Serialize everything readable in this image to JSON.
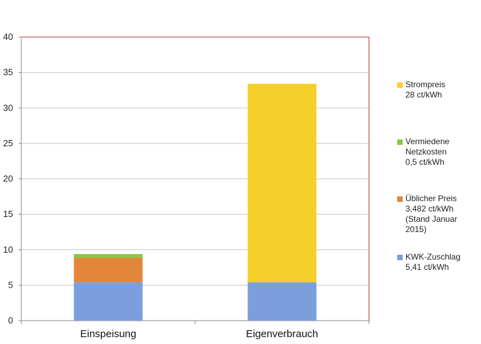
{
  "chart_data": {
    "type": "bar",
    "stacked": true,
    "categories": [
      "Einspeisung",
      "Eigenverbrauch"
    ],
    "series": [
      {
        "name": "KWK-Zuschlag 5,41 ct/kWh",
        "values": [
          5.41,
          5.41
        ],
        "color": "#7b9fdd"
      },
      {
        "name": "Üblicher Preis 3,482 ct/kWh (Stand Januar 2015)",
        "values": [
          3.482,
          0
        ],
        "color": "#e2873a"
      },
      {
        "name": "Vermiedene Netzkosten 0,5 ct/kWh",
        "values": [
          0.5,
          0
        ],
        "color": "#8dc63f"
      },
      {
        "name": "Strompreis 28 ct/kWh",
        "values": [
          0,
          28
        ],
        "color": "#f5d02a"
      }
    ],
    "ylim": [
      0,
      40
    ],
    "yticks": [
      0,
      5,
      10,
      15,
      20,
      25,
      30,
      35,
      40
    ],
    "grid": true,
    "legend_position": "right",
    "title": "",
    "xlabel": "",
    "ylabel": ""
  },
  "legend": [
    {
      "text": "Strompreis\n28 ct/kWh",
      "color": "#f5d02a"
    },
    {
      "text": "Vermiedene\nNetzkosten\n0,5 ct/kWh",
      "color": "#8dc63f"
    },
    {
      "text": "Üblicher Preis\n3,482 ct/kWh\n(Stand Januar\n2015)",
      "color": "#e2873a"
    },
    {
      "text": "KWK-Zuschlag\n5,41 ct/kWh",
      "color": "#7b9fdd"
    }
  ]
}
